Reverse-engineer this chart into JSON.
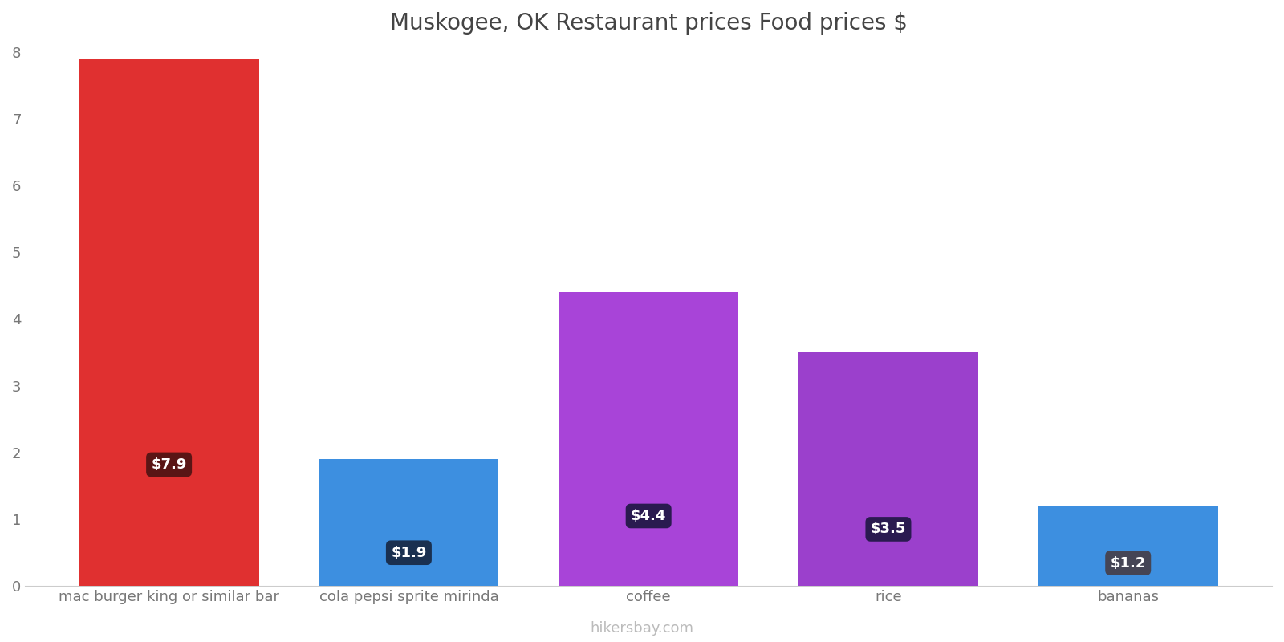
{
  "title": "Muskogee, OK Restaurant prices Food prices $",
  "categories": [
    "mac burger king or similar bar",
    "cola pepsi sprite mirinda",
    "coffee",
    "rice",
    "bananas"
  ],
  "values": [
    7.9,
    1.9,
    4.4,
    3.5,
    1.2
  ],
  "bar_colors": [
    "#e03030",
    "#3d8fe0",
    "#a844d8",
    "#9b40cc",
    "#3d8fe0"
  ],
  "label_texts": [
    "$7.9",
    "$1.9",
    "$4.4",
    "$3.5",
    "$1.2"
  ],
  "label_box_colors": [
    "#5a1515",
    "#1a3050",
    "#2a1a50",
    "#2a1a50",
    "#454555"
  ],
  "ylim": [
    0,
    8
  ],
  "yticks": [
    0,
    1,
    2,
    3,
    4,
    5,
    6,
    7,
    8
  ],
  "background_color": "#ffffff",
  "title_fontsize": 20,
  "tick_fontsize": 13,
  "watermark": "hikersbay.com",
  "watermark_color": "#bbbbbb",
  "bar_width": 0.75
}
